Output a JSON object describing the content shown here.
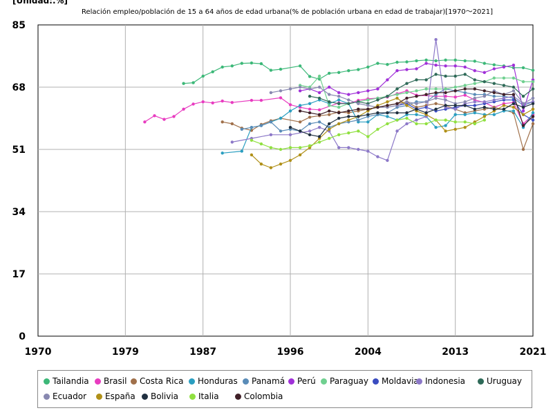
{
  "unit_label": "[Unidad:.%]",
  "chart_data": {
    "type": "line",
    "title": "Relación empleo/población de 15 a 64 años de edad urbana(% de población urbana en edad de trabajar)[1970〜2021]",
    "xlabel": "",
    "ylabel": "",
    "xlim": [
      1970,
      2021
    ],
    "ylim": [
      0,
      85
    ],
    "x_ticks": [
      "1970",
      "1979",
      "1987",
      "1996",
      "2004",
      "2013",
      "2021"
    ],
    "y_ticks": [
      "0",
      "17",
      "34",
      "51",
      "68",
      "85"
    ],
    "grid": true,
    "legend_position": "bottom",
    "series": [
      {
        "name": "Tailandia",
        "color": "#3cb878",
        "x": [
          1985,
          1986,
          1987,
          1988,
          1989,
          1990,
          1991,
          1992,
          1993,
          1994,
          1995,
          1997,
          1998,
          1999,
          2000,
          2001,
          2002,
          2003,
          2004,
          2005,
          2006,
          2007,
          2008,
          2009,
          2010,
          2011,
          2012,
          2013,
          2014,
          2015,
          2016,
          2017,
          2018,
          2019,
          2020,
          2021
        ],
        "y": [
          69.0,
          69.2,
          71.0,
          72.2,
          73.5,
          73.8,
          74.5,
          74.6,
          74.4,
          72.6,
          72.9,
          73.8,
          70.9,
          70.2,
          71.8,
          72.0,
          72.5,
          72.8,
          73.5,
          74.5,
          74.2,
          74.8,
          74.9,
          75.2,
          75.4,
          75.2,
          75.4,
          75.4,
          75.2,
          75.1,
          74.5,
          74.1,
          73.8,
          73.3,
          73.3,
          72.6
        ]
      },
      {
        "name": "Brasil",
        "color": "#e83cc0",
        "x": [
          1981,
          1982,
          1983,
          1984,
          1985,
          1986,
          1987,
          1988,
          1989,
          1990,
          1992,
          1993,
          1995,
          1996,
          1997,
          1998,
          1999,
          2001,
          2002,
          2003,
          2004,
          2005,
          2006,
          2007,
          2008,
          2009,
          2011,
          2012,
          2013,
          2014,
          2015,
          2016,
          2017,
          2018,
          2019,
          2020,
          2021
        ],
        "y": [
          58.5,
          60.2,
          59.2,
          60.0,
          62.0,
          63.4,
          64.0,
          63.7,
          64.2,
          63.8,
          64.4,
          64.4,
          65.1,
          63.2,
          62.5,
          62.0,
          61.8,
          63.7,
          63.5,
          64.4,
          64.8,
          65.0,
          65.3,
          66.2,
          67.0,
          65.8,
          65.5,
          65.5,
          65.3,
          65.8,
          64.5,
          63.8,
          62.5,
          63.5,
          63.8,
          58.0,
          60.5
        ]
      },
      {
        "name": "Costa Rica",
        "color": "#a0704a",
        "x": [
          1989,
          1990,
          1991,
          1992,
          1993,
          1994,
          1995,
          1997,
          1998,
          1999,
          2000,
          2001,
          2002,
          2003,
          2004,
          2005,
          2006,
          2007,
          2008,
          2009,
          2010,
          2011,
          2012,
          2013,
          2014,
          2015,
          2016,
          2017,
          2018,
          2019,
          2020,
          2021
        ],
        "y": [
          58.5,
          58.0,
          56.8,
          56.2,
          57.8,
          58.8,
          59.5,
          58.5,
          59.8,
          60.2,
          60.5,
          61.2,
          61.0,
          61.5,
          62.0,
          62.5,
          63.0,
          63.5,
          64.0,
          62.5,
          63.0,
          63.5,
          63.0,
          62.0,
          61.0,
          61.5,
          62.0,
          62.5,
          61.8,
          61.0,
          51.0,
          58.0
        ]
      },
      {
        "name": "Honduras",
        "color": "#2a9ec0",
        "x": [
          1989,
          1991,
          1992,
          1993,
          1994,
          1995,
          1996,
          1997,
          1998,
          1999,
          2000,
          2001,
          2002,
          2003,
          2004,
          2005,
          2006,
          2007,
          2008,
          2009,
          2010,
          2011,
          2012,
          2013,
          2014,
          2015,
          2016,
          2017,
          2018,
          2019,
          2020,
          2021
        ],
        "y": [
          50.0,
          50.5,
          57.0,
          57.5,
          58.5,
          59.5,
          61.5,
          63.0,
          63.5,
          64.5,
          63.5,
          64.5,
          63.5,
          58.5,
          58.5,
          60.5,
          60.0,
          59.0,
          60.5,
          60.5,
          60.0,
          57.0,
          57.5,
          60.5,
          60.5,
          61.0,
          60.5,
          60.5,
          61.5,
          61.5,
          57.0,
          61.0
        ]
      },
      {
        "name": "Panamá",
        "color": "#5a8cb8",
        "x": [
          1991,
          1992,
          1993,
          1994,
          1995,
          1996,
          1997,
          1998,
          1999,
          2000,
          2001,
          2002,
          2003,
          2004,
          2005,
          2006,
          2007,
          2008,
          2009,
          2010,
          2011,
          2012,
          2013,
          2014,
          2015,
          2016,
          2017,
          2018,
          2019,
          2020,
          2021
        ],
        "y": [
          56.5,
          57.0,
          57.5,
          58.5,
          56.0,
          56.5,
          56.0,
          58.0,
          58.5,
          57.0,
          58.0,
          58.5,
          59.0,
          60.0,
          60.5,
          61.0,
          62.5,
          63.0,
          64.0,
          64.0,
          66.0,
          67.5,
          67.0,
          66.5,
          66.0,
          66.0,
          65.5,
          65.5,
          65.0,
          63.0,
          64.0
        ]
      },
      {
        "name": "Perú",
        "color": "#a030d8",
        "x": [
          1997,
          1998,
          1999,
          2000,
          2001,
          2002,
          2003,
          2004,
          2005,
          2006,
          2007,
          2008,
          2009,
          2010,
          2011,
          2012,
          2013,
          2014,
          2015,
          2016,
          2017,
          2018,
          2019,
          2020,
          2021
        ],
        "y": [
          67.0,
          67.5,
          66.5,
          68.0,
          66.5,
          66.0,
          66.5,
          67.0,
          67.5,
          70.0,
          72.5,
          72.8,
          73.0,
          74.5,
          74.0,
          73.8,
          73.8,
          73.5,
          72.5,
          72.0,
          73.0,
          73.5,
          74.0,
          61.5,
          70.0
        ]
      },
      {
        "name": "Paraguay",
        "color": "#70d090",
        "x": [
          1997,
          1998,
          1999,
          2000,
          2001,
          2002,
          2003,
          2004,
          2005,
          2006,
          2007,
          2008,
          2009,
          2010,
          2011,
          2012,
          2013,
          2014,
          2015,
          2016,
          2017,
          2018,
          2019,
          2020,
          2021
        ],
        "y": [
          68.5,
          68.0,
          71.0,
          63.0,
          62.5,
          63.5,
          64.0,
          64.5,
          65.0,
          65.5,
          66.0,
          66.5,
          67.0,
          67.5,
          67.5,
          67.5,
          68.0,
          68.5,
          69.0,
          69.5,
          70.5,
          70.5,
          70.5,
          69.5,
          69.5
        ]
      },
      {
        "name": "Moldavia",
        "color": "#3a4cc0",
        "x": [
          2007,
          2008,
          2009,
          2010,
          2011,
          2012,
          2013,
          2014,
          2015,
          2016,
          2017,
          2018,
          2019,
          2020,
          2021
        ],
        "y": [
          63.0,
          63.5,
          62.0,
          62.5,
          61.5,
          62.0,
          62.5,
          63.0,
          63.0,
          63.5,
          64.0,
          64.5,
          64.5,
          60.5,
          59.0
        ]
      },
      {
        "name": "Indonesia",
        "color": "#8c78c8",
        "x": [
          1990,
          1992,
          1994,
          1996,
          1998,
          1999,
          2000,
          2001,
          2002,
          2003,
          2004,
          2005,
          2006,
          2007,
          2008,
          2009,
          2010,
          2011,
          2012,
          2013,
          2014,
          2015,
          2016,
          2017,
          2018,
          2019,
          2020,
          2021
        ],
        "y": [
          53.0,
          54.0,
          55.0,
          55.0,
          56.0,
          57.0,
          56.0,
          51.5,
          51.5,
          51.0,
          50.5,
          49.0,
          48.0,
          56.0,
          58.0,
          59.0,
          60.0,
          81.0,
          62.5,
          62.0,
          63.5,
          64.0,
          64.0,
          64.5,
          65.0,
          65.5,
          63.5,
          64.0
        ]
      },
      {
        "name": "Uruguay",
        "color": "#2e6a58",
        "x": [
          1998,
          1999,
          2000,
          2001,
          2002,
          2003,
          2004,
          2005,
          2006,
          2007,
          2008,
          2009,
          2010,
          2011,
          2012,
          2013,
          2014,
          2015,
          2016,
          2017,
          2018,
          2019,
          2020,
          2021
        ],
        "y": [
          65.5,
          65.0,
          64.0,
          63.5,
          63.5,
          64.0,
          63.5,
          64.5,
          65.5,
          67.5,
          69.0,
          70.0,
          70.0,
          71.5,
          71.0,
          71.0,
          71.5,
          70.0,
          69.5,
          69.0,
          68.5,
          68.0,
          65.5,
          67.5
        ]
      },
      {
        "name": "Ecuador",
        "color": "#8888b0",
        "x": [
          1994,
          1995,
          1996,
          1997,
          1998,
          1999,
          2000,
          2001,
          2002,
          2003,
          2004,
          2005,
          2006,
          2007,
          2008,
          2009,
          2010,
          2011,
          2012,
          2013,
          2014,
          2015,
          2016,
          2017,
          2018,
          2019,
          2020,
          2021
        ],
        "y": [
          66.5,
          67.0,
          67.5,
          68.0,
          67.5,
          68.0,
          66.0,
          65.5,
          64.5,
          63.5,
          63.0,
          62.5,
          62.5,
          63.0,
          64.0,
          63.5,
          64.0,
          65.0,
          64.5,
          63.5,
          64.0,
          65.0,
          65.5,
          67.0,
          66.0,
          67.0,
          63.5,
          65.0
        ]
      },
      {
        "name": "España",
        "color": "#b09018",
        "x": [
          1992,
          1993,
          1994,
          1995,
          1996,
          1997,
          1998,
          1999,
          2000,
          2001,
          2002,
          2003,
          2004,
          2005,
          2006,
          2007,
          2008,
          2009,
          2010,
          2011,
          2012,
          2013,
          2014,
          2015,
          2016,
          2017,
          2018,
          2019,
          2020,
          2021
        ],
        "y": [
          49.5,
          47.0,
          46.0,
          47.0,
          48.0,
          49.5,
          51.5,
          54.0,
          56.5,
          58.0,
          59.0,
          60.0,
          61.5,
          63.0,
          64.0,
          65.0,
          63.0,
          61.5,
          60.5,
          59.0,
          56.0,
          56.5,
          57.0,
          58.5,
          60.0,
          61.5,
          63.0,
          62.5,
          60.5,
          62.0
        ]
      },
      {
        "name": "Bolivia",
        "color": "#203040",
        "x": [
          1996,
          1997,
          1998,
          1999,
          2000,
          2001,
          2002,
          2003,
          2004,
          2005,
          2006,
          2007,
          2008,
          2009,
          2010,
          2011,
          2012,
          2013,
          2014,
          2015,
          2016,
          2017,
          2018,
          2019,
          2020,
          2021
        ],
        "y": [
          57.0,
          56.0,
          55.0,
          54.5,
          58.0,
          59.5,
          60.0,
          60.0,
          60.5,
          61.0,
          61.0,
          61.0,
          61.0,
          62.0,
          61.0,
          62.0,
          63.0,
          63.0,
          63.0,
          62.0,
          62.5,
          62.0,
          62.0,
          63.5,
          62.5,
          63.5
        ]
      },
      {
        "name": "Italia",
        "color": "#90e040",
        "x": [
          1992,
          1993,
          1994,
          1995,
          1996,
          1997,
          1998,
          1999,
          2000,
          2001,
          2002,
          2003,
          2004,
          2005,
          2006,
          2007,
          2008,
          2009,
          2010,
          2011,
          2012,
          2013,
          2014,
          2015,
          2016
        ],
        "y": [
          53.5,
          52.5,
          51.5,
          51.0,
          51.5,
          51.5,
          52.0,
          53.0,
          54.0,
          55.0,
          55.5,
          56.0,
          54.5,
          56.5,
          58.0,
          59.0,
          59.5,
          58.0,
          58.0,
          59.0,
          59.0,
          58.5,
          58.5,
          58.0,
          59.0
        ]
      },
      {
        "name": "Colombia",
        "color": "#402028",
        "x": [
          1997,
          1998,
          1999,
          2000,
          2001,
          2002,
          2003,
          2004,
          2005,
          2006,
          2007,
          2008,
          2009,
          2010,
          2011,
          2012,
          2013,
          2014,
          2015,
          2016,
          2017,
          2018,
          2019,
          2020,
          2021
        ],
        "y": [
          61.5,
          61.0,
          60.5,
          61.5,
          61.0,
          61.5,
          62.0,
          62.0,
          62.5,
          63.0,
          63.5,
          65.0,
          65.5,
          66.0,
          66.5,
          66.5,
          67.0,
          67.5,
          67.5,
          67.0,
          66.5,
          66.0,
          66.0,
          57.5,
          60.0
        ]
      }
    ]
  }
}
